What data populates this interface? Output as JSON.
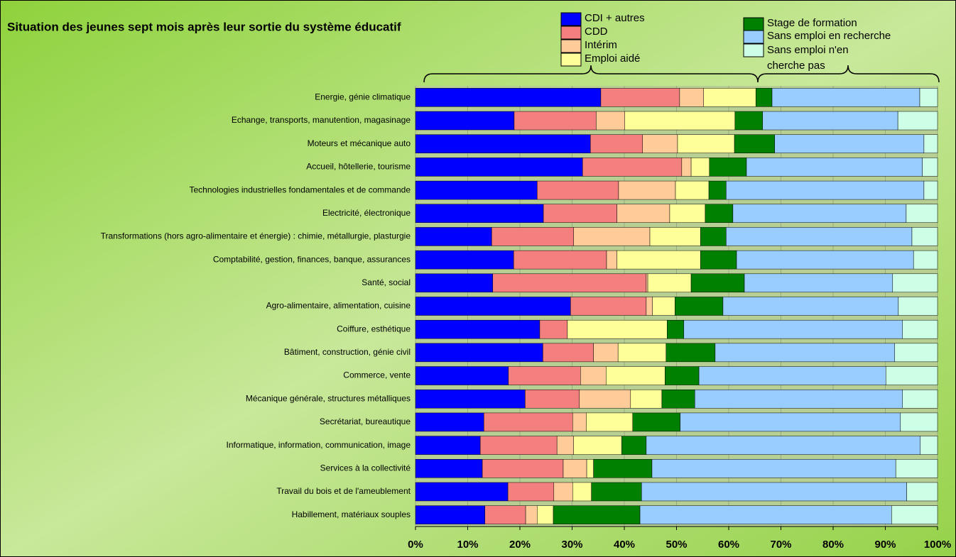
{
  "chart_data": {
    "type": "stacked-bar-horizontal",
    "title": "Situation des jeunes sept mois après leur sortie du système éducatif",
    "categories": [
      "Energie, génie climatique",
      "Echange, transports, manutention, magasinage",
      "Moteurs et mécanique auto",
      "Accueil, hôtellerie, tourisme",
      "Technologies industrielles fondamentales et de commande",
      "Electricité, électronique",
      "Transformations (hors agro-alimentaire et énergie) : chimie, métallurgie, plasturgie",
      "Comptabilité, gestion, finances, banque, assurances",
      "Santé, social",
      "Agro-alimentaire, alimentation, cuisine",
      "Coiffure, esthétique",
      "Bâtiment, construction, génie civil",
      "Commerce, vente",
      "Mécanique générale, structures métalliques",
      "Secrétariat, bureautique",
      "Informatique, information, communication, image",
      "Services à la collectivité",
      "Travail du bois et de l'ameublement",
      "Habillement, matériaux souples"
    ],
    "series": [
      {
        "name": "CDI + autres",
        "color": "#0000ff",
        "values": [
          35.5,
          18.9,
          33.5,
          32.0,
          23.3,
          24.5,
          14.6,
          18.8,
          14.8,
          29.7,
          23.8,
          24.4,
          17.8,
          21.0,
          13.1,
          12.4,
          12.8,
          17.7,
          13.3
        ]
      },
      {
        "name": "CDD",
        "color": "#f47f7f",
        "values": [
          15.1,
          15.7,
          10.0,
          19.0,
          15.6,
          14.1,
          15.7,
          17.8,
          29.4,
          14.5,
          5.3,
          9.7,
          13.8,
          10.4,
          17.0,
          14.7,
          15.5,
          8.8,
          7.8
        ]
      },
      {
        "name": "Intérim",
        "color": "#ffcc99",
        "values": [
          4.6,
          5.5,
          6.7,
          1.8,
          10.9,
          10.1,
          14.6,
          2.0,
          0.3,
          1.2,
          0,
          4.7,
          4.9,
          9.8,
          2.6,
          3.2,
          4.5,
          3.6,
          2.2
        ]
      },
      {
        "name": "Emploi aidé",
        "color": "#ffff99",
        "values": [
          10.0,
          21.1,
          10.9,
          3.5,
          6.4,
          6.8,
          9.7,
          16.0,
          8.3,
          4.3,
          19.1,
          9.2,
          11.3,
          6.0,
          8.9,
          9.2,
          1.3,
          3.6,
          3.1
        ]
      },
      {
        "name": "Stage de formation",
        "color": "#008000",
        "values": [
          3.1,
          5.3,
          7.7,
          7.1,
          3.3,
          5.3,
          4.9,
          6.9,
          10.2,
          9.2,
          3.2,
          9.4,
          6.5,
          6.3,
          9.1,
          4.7,
          11.2,
          9.6,
          16.6
        ]
      },
      {
        "name": "Sans emploi en recherche",
        "color": "#99ccff",
        "values": [
          28.3,
          25.9,
          28.6,
          33.7,
          37.9,
          33.2,
          35.6,
          33.9,
          28.4,
          33.6,
          41.9,
          34.4,
          35.8,
          39.8,
          42.2,
          52.5,
          46.7,
          50.8,
          48.2
        ]
      },
      {
        "name": "Sans emploi n'en cherche pas",
        "color": "#ccffe5",
        "values": [
          3.4,
          7.6,
          2.6,
          2.9,
          2.6,
          6.0,
          4.9,
          4.6,
          8.6,
          7.5,
          6.7,
          8.2,
          9.9,
          6.7,
          7.1,
          3.3,
          8.0,
          5.9,
          8.8
        ]
      }
    ],
    "xlim": [
      0,
      100
    ],
    "xticks": [
      {
        "value": 0,
        "label": "0%"
      },
      {
        "value": 10,
        "label": "10%"
      },
      {
        "value": 20,
        "label": "20%"
      },
      {
        "value": 30,
        "label": "30%"
      },
      {
        "value": 40,
        "label": "40%"
      },
      {
        "value": 50,
        "label": "50%"
      },
      {
        "value": 60,
        "label": "60%"
      },
      {
        "value": 70,
        "label": "70%"
      },
      {
        "value": 80,
        "label": "80%"
      },
      {
        "value": 90,
        "label": "90%"
      },
      {
        "value": 100,
        "label": "100%"
      }
    ],
    "grid": true,
    "legend": "top"
  }
}
